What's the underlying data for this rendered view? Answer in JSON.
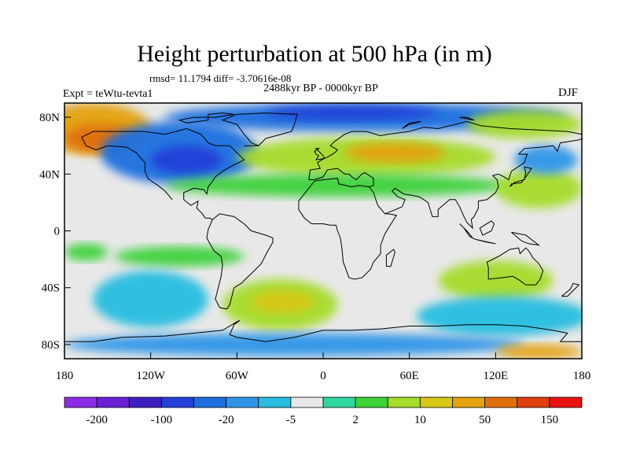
{
  "title": "Height perturbation at 500 hPa (in m)",
  "stats": "rmsd= 11.1794 diff= -3.70616e-08",
  "expt": "Expt = teWtu-tevta1",
  "period": "2488kyr BP - 0000kyr BP",
  "season": "DJF",
  "chart_data": {
    "type": "heatmap",
    "title": "Height perturbation at 500 hPa (in m)",
    "xlabel": "",
    "ylabel": "",
    "xlim": [
      -180,
      180
    ],
    "ylim": [
      -90,
      90
    ],
    "x_ticks": [
      {
        "value": -180,
        "label": "180"
      },
      {
        "value": -120,
        "label": "120W"
      },
      {
        "value": -60,
        "label": "60W"
      },
      {
        "value": 0,
        "label": "0"
      },
      {
        "value": 60,
        "label": "60E"
      },
      {
        "value": 120,
        "label": "120E"
      },
      {
        "value": 180,
        "label": "180"
      }
    ],
    "y_ticks": [
      {
        "value": 80,
        "label": "80N"
      },
      {
        "value": 40,
        "label": "40N"
      },
      {
        "value": 0,
        "label": "0"
      },
      {
        "value": -40,
        "label": "40S"
      },
      {
        "value": -80,
        "label": "80S"
      }
    ],
    "colorbar": {
      "colors": [
        "#8c2ce6",
        "#6a1fd6",
        "#3d1fc0",
        "#2440d8",
        "#1f6fe0",
        "#2f95e8",
        "#28bde0",
        "#e8e8e8",
        "#2ed6a0",
        "#3ed23a",
        "#a6dc2a",
        "#d8c818",
        "#e4a20e",
        "#e0700c",
        "#e04010",
        "#e8120e"
      ],
      "labels": [
        {
          "after_index": 0,
          "text": "-200"
        },
        {
          "after_index": 2,
          "text": "-100"
        },
        {
          "after_index": 4,
          "text": "-20"
        },
        {
          "after_index": 6,
          "text": "-5"
        },
        {
          "after_index": 8,
          "text": "2"
        },
        {
          "after_index": 10,
          "text": "10"
        },
        {
          "after_index": 12,
          "text": "50"
        },
        {
          "after_index": 14,
          "text": "150"
        }
      ]
    },
    "fields": [
      {
        "lon": -160,
        "lat": 72,
        "rx": 40,
        "ry": 18,
        "value": 50
      },
      {
        "lon": -155,
        "lat": 65,
        "rx": 25,
        "ry": 10,
        "value": 100
      },
      {
        "lon": -100,
        "lat": 55,
        "rx": 55,
        "ry": 22,
        "value": -20
      },
      {
        "lon": -95,
        "lat": 50,
        "rx": 25,
        "ry": 10,
        "value": -50
      },
      {
        "lon": 30,
        "lat": 80,
        "rx": 140,
        "ry": 10,
        "value": -20
      },
      {
        "lon": 20,
        "lat": 83,
        "rx": 60,
        "ry": 5,
        "value": -50
      },
      {
        "lon": 30,
        "lat": 52,
        "rx": 90,
        "ry": 14,
        "value": 10
      },
      {
        "lon": 50,
        "lat": 55,
        "rx": 35,
        "ry": 7,
        "value": 30
      },
      {
        "lon": 10,
        "lat": 32,
        "rx": 120,
        "ry": 8,
        "value": 5
      },
      {
        "lon": 150,
        "lat": 30,
        "rx": 30,
        "ry": 14,
        "value": 10
      },
      {
        "lon": 155,
        "lat": 50,
        "rx": 22,
        "ry": 10,
        "value": -10
      },
      {
        "lon": 140,
        "lat": 75,
        "rx": 40,
        "ry": 10,
        "value": 10
      },
      {
        "lon": -165,
        "lat": -15,
        "rx": 15,
        "ry": 6,
        "value": 5
      },
      {
        "lon": -100,
        "lat": -18,
        "rx": 45,
        "ry": 7,
        "value": 5
      },
      {
        "lon": -120,
        "lat": -48,
        "rx": 40,
        "ry": 20,
        "value": -5
      },
      {
        "lon": -30,
        "lat": -52,
        "rx": 40,
        "ry": 18,
        "value": 10
      },
      {
        "lon": -28,
        "lat": -50,
        "rx": 22,
        "ry": 8,
        "value": 20
      },
      {
        "lon": 120,
        "lat": -35,
        "rx": 40,
        "ry": 14,
        "value": 10
      },
      {
        "lon": 125,
        "lat": -60,
        "rx": 60,
        "ry": 14,
        "value": -5
      },
      {
        "lon": -20,
        "lat": -80,
        "rx": 160,
        "ry": 8,
        "value": -10
      },
      {
        "lon": 150,
        "lat": -85,
        "rx": 30,
        "ry": 5,
        "value": 50
      }
    ]
  }
}
